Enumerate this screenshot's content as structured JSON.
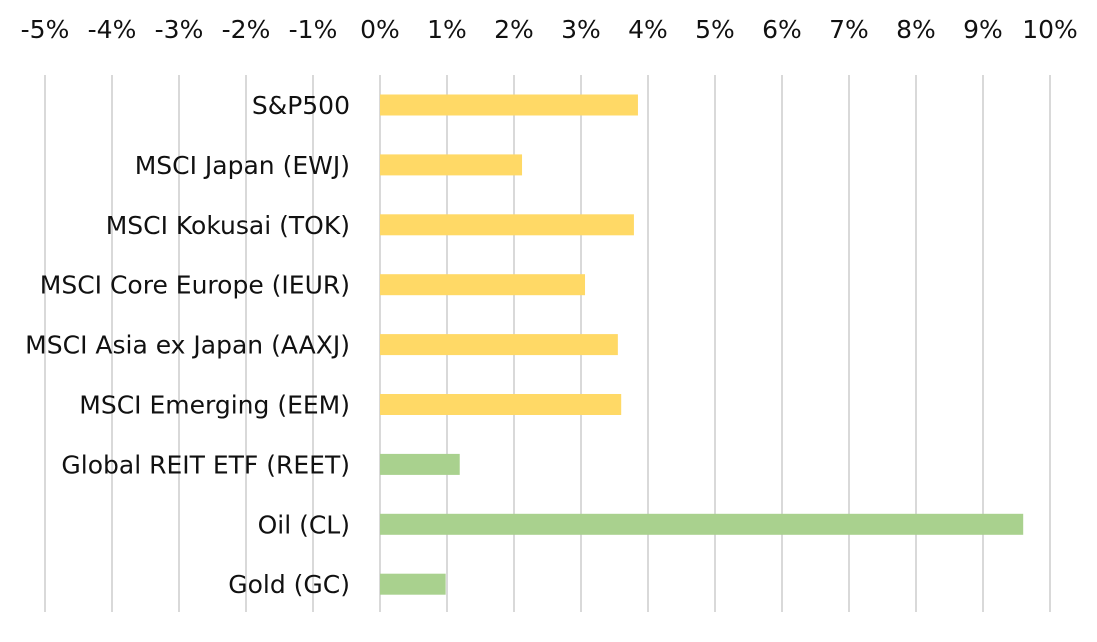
{
  "chart_data": {
    "type": "bar",
    "orientation": "horizontal",
    "title": "",
    "xlabel": "",
    "ylabel": "",
    "x_axis_position": "top",
    "xlim": [
      -5,
      10
    ],
    "tick_values": [
      -5,
      -4,
      -3,
      -2,
      -1,
      0,
      1,
      2,
      3,
      4,
      5,
      6,
      7,
      8,
      9,
      10
    ],
    "tick_labels": [
      "-5%",
      "-4%",
      "-3%",
      "-2%",
      "-1%",
      "0%",
      "1%",
      "2%",
      "3%",
      "4%",
      "5%",
      "6%",
      "7%",
      "8%",
      "9%",
      "10%"
    ],
    "grid": "vertical",
    "categories": [
      "S&P500",
      "MSCI Japan (EWJ)",
      "MSCI Kokusai (TOK)",
      "MSCI Core Europe (IEUR)",
      "MSCI Asia ex Japan (AAXJ)",
      "MSCI Emerging (EEM)",
      "Global REIT ETF (REET)",
      "Oil (CL)",
      "Gold (GC)"
    ],
    "values": [
      3.85,
      2.12,
      3.79,
      3.06,
      3.55,
      3.6,
      1.19,
      9.6,
      0.98
    ],
    "colors": [
      "#ffd966",
      "#ffd966",
      "#ffd966",
      "#ffd966",
      "#ffd966",
      "#ffd966",
      "#a9d18e",
      "#a9d18e",
      "#a9d18e"
    ]
  }
}
